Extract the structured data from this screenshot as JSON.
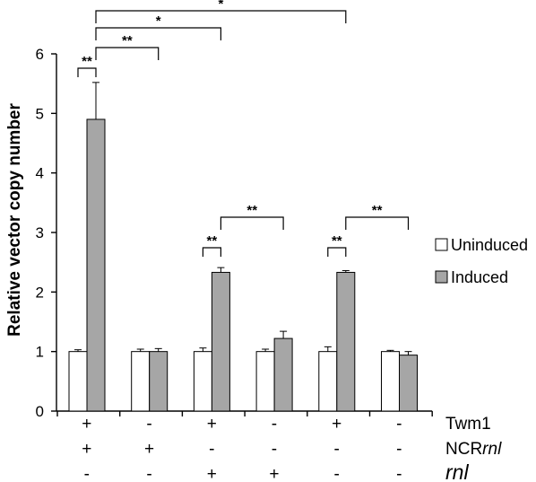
{
  "chart_data": {
    "type": "bar",
    "ylabel": "Relative vector copy number",
    "ylim": [
      0,
      6
    ],
    "yticks": [
      "0",
      "1",
      "2",
      "3",
      "4",
      "5",
      "6"
    ],
    "grid": false,
    "legend_position": "right",
    "series": [
      {
        "name": "Uninduced",
        "color": "#ffffff",
        "values": [
          1.0,
          1.0,
          1.0,
          1.0,
          1.0,
          1.0
        ],
        "errors": [
          0.03,
          0.04,
          0.06,
          0.04,
          0.08,
          0.02
        ]
      },
      {
        "name": "Induced",
        "color": "#a6a6a6",
        "values": [
          4.9,
          1.0,
          2.33,
          1.22,
          2.33,
          0.94
        ],
        "errors": [
          0.62,
          0.05,
          0.08,
          0.12,
          0.03,
          0.06
        ]
      }
    ],
    "condition_rows": [
      {
        "label": "Twm1",
        "values": [
          "+",
          "-",
          "+",
          "-",
          "+",
          "-"
        ]
      },
      {
        "label_prefix": "NCR",
        "label_italic": "rnl",
        "values": [
          "+",
          "+",
          "-",
          "-",
          "-",
          "-"
        ]
      },
      {
        "label_italic": "rnl",
        "values": [
          "-",
          "-",
          "+",
          "+",
          "-",
          "-"
        ]
      }
    ],
    "significance": [
      {
        "label": "**",
        "from": [
          0,
          "Uninduced"
        ],
        "to": [
          0,
          "Induced"
        ]
      },
      {
        "label": "**",
        "from": [
          0,
          "Induced"
        ],
        "to": [
          1,
          "Induced"
        ]
      },
      {
        "label": "*",
        "from": [
          0,
          "Induced"
        ],
        "to": [
          2,
          "Induced"
        ]
      },
      {
        "label": "*",
        "from": [
          0,
          "Induced"
        ],
        "to": [
          4,
          "Induced"
        ]
      },
      {
        "label": "**",
        "from": [
          2,
          "Uninduced"
        ],
        "to": [
          2,
          "Induced"
        ]
      },
      {
        "label": "**",
        "from": [
          2,
          "Induced"
        ],
        "to": [
          3,
          "Induced"
        ]
      },
      {
        "label": "**",
        "from": [
          4,
          "Uninduced"
        ],
        "to": [
          4,
          "Induced"
        ]
      },
      {
        "label": "**",
        "from": [
          4,
          "Induced"
        ],
        "to": [
          5,
          "Induced"
        ]
      }
    ]
  }
}
